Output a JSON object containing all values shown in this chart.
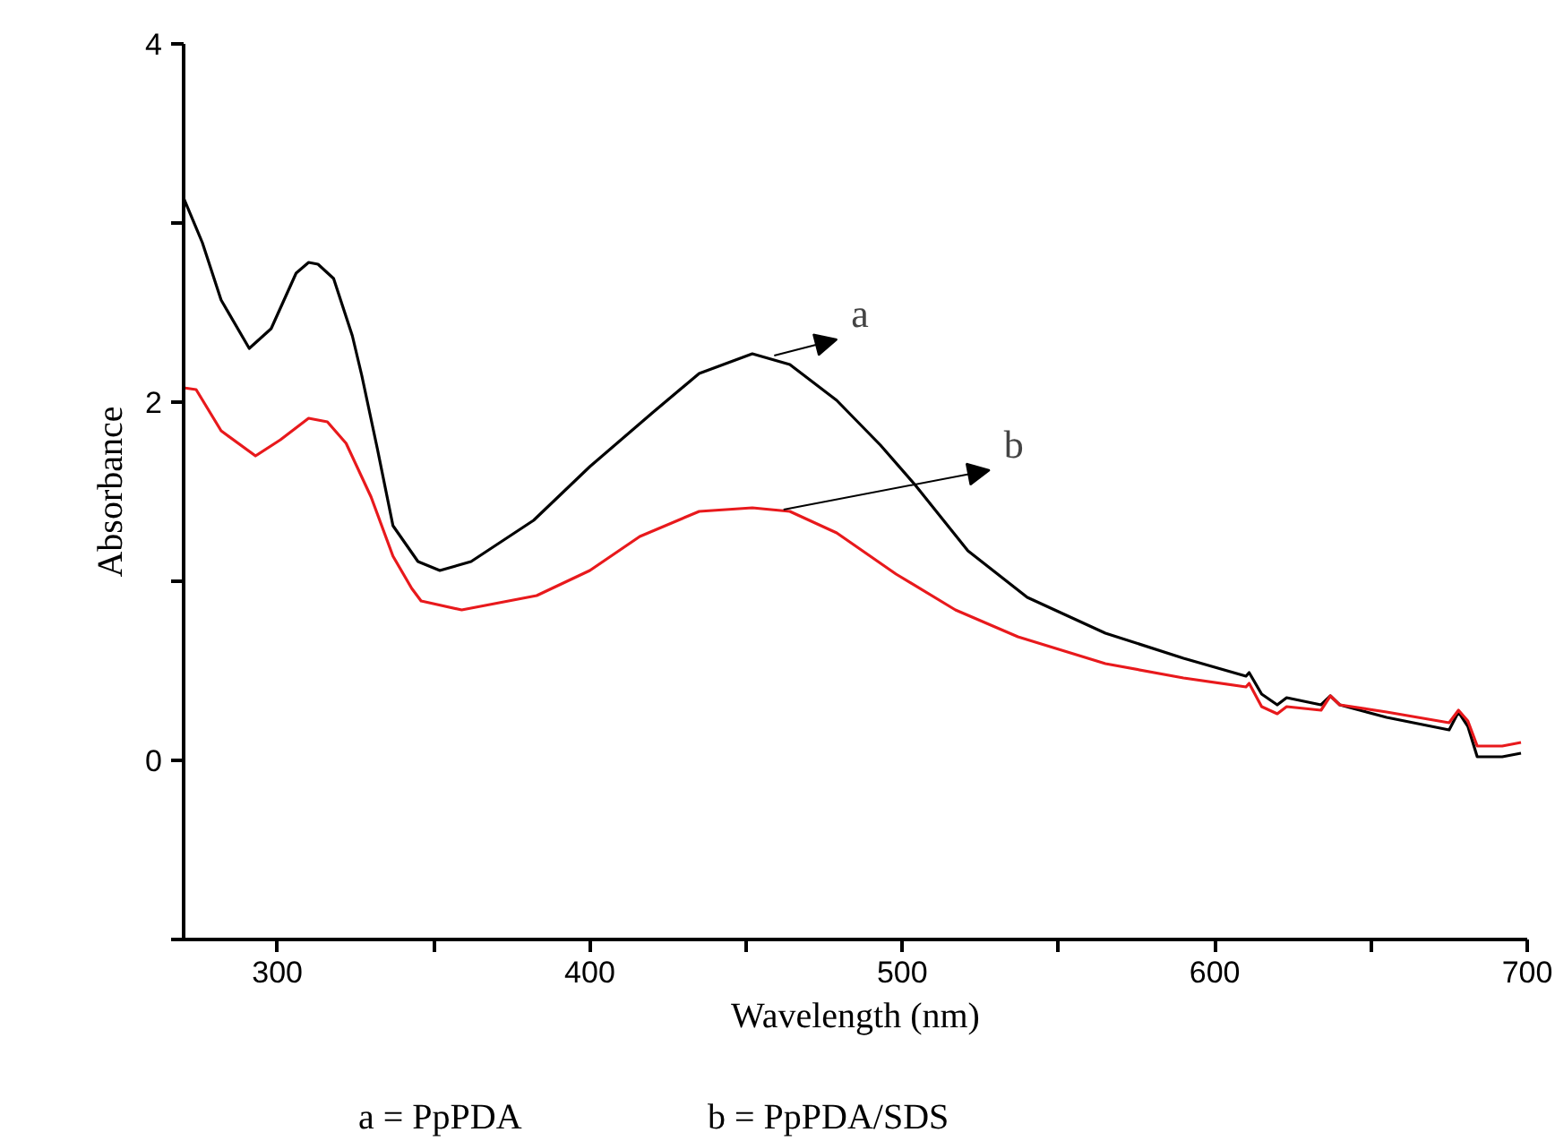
{
  "chart_data": {
    "type": "line",
    "xlabel": "Wavelength (nm)",
    "ylabel": "Absorbance",
    "xlim": [
      270,
      700
    ],
    "ylim": [
      -1,
      4
    ],
    "xticks": [
      300,
      {
        "value": 350,
        "label": null
      },
      400,
      {
        "value": 450,
        "label": null
      },
      500,
      {
        "value": 550,
        "label": null
      },
      600,
      {
        "value": 650,
        "label": null
      },
      700
    ],
    "yticks": [
      {
        "value": -1,
        "label": null
      },
      0,
      {
        "value": 1,
        "label": null
      },
      2,
      {
        "value": 3,
        "label": null
      },
      4
    ],
    "grid": false,
    "marker": "none",
    "line_style": "solid",
    "series": [
      {
        "color": "#000000",
        "x": [
          270,
          276,
          282,
          291,
          298,
          306,
          310,
          313,
          318,
          324,
          327,
          332,
          337,
          345,
          352,
          362,
          382,
          400,
          420,
          435,
          452,
          464,
          479,
          493,
          504,
          521,
          540,
          565,
          590,
          610,
          611,
          615,
          620,
          623,
          634,
          637,
          640,
          655,
          675,
          678,
          681,
          684,
          692,
          698
        ],
        "values": [
          3.14,
          2.89,
          2.57,
          2.3,
          2.41,
          2.72,
          2.78,
          2.77,
          2.69,
          2.37,
          2.15,
          1.74,
          1.31,
          1.11,
          1.06,
          1.11,
          1.34,
          1.64,
          1.94,
          2.16,
          2.27,
          2.21,
          2.01,
          1.76,
          1.54,
          1.17,
          0.91,
          0.71,
          0.57,
          0.47,
          0.49,
          0.37,
          0.31,
          0.35,
          0.31,
          0.36,
          0.31,
          0.24,
          0.17,
          0.27,
          0.19,
          0.02,
          0.02,
          0.04
        ]
      },
      {
        "color": "#e8191c",
        "x": [
          270,
          274,
          282,
          293,
          301,
          310,
          316,
          322,
          330,
          337,
          343,
          346,
          359,
          383,
          400,
          416,
          435,
          452,
          464,
          479,
          498,
          517,
          537,
          565,
          590,
          610,
          611,
          615,
          620,
          623,
          634,
          637,
          640,
          655,
          675,
          678,
          681,
          684,
          692,
          698
        ],
        "values": [
          2.08,
          2.07,
          1.84,
          1.7,
          1.79,
          1.91,
          1.89,
          1.77,
          1.47,
          1.14,
          0.96,
          0.89,
          0.84,
          0.92,
          1.06,
          1.25,
          1.39,
          1.41,
          1.39,
          1.27,
          1.04,
          0.84,
          0.69,
          0.54,
          0.46,
          0.41,
          0.43,
          0.3,
          0.26,
          0.3,
          0.28,
          0.36,
          0.31,
          0.27,
          0.21,
          0.28,
          0.22,
          0.08,
          0.08,
          0.1
        ]
      }
    ],
    "annotations": [
      {
        "text": "a",
        "x": 459,
        "y": 2.26
      },
      {
        "text": "b",
        "x": 462,
        "y": 1.4
      },
      "a = PpPDA",
      "b = PpPDA/SDS"
    ]
  }
}
